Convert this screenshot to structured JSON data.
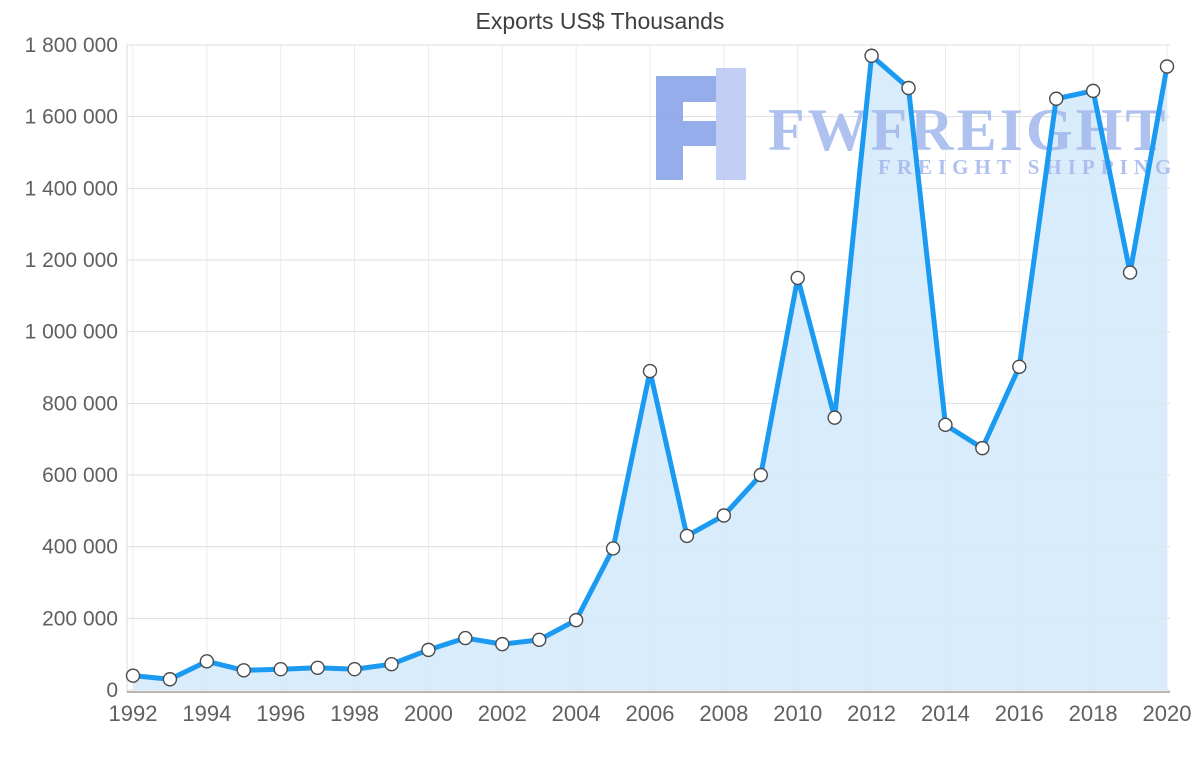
{
  "chart_data": {
    "type": "area",
    "title": "Exports US$ Thousands",
    "xlabel": "",
    "ylabel": "",
    "x": [
      1992,
      1993,
      1994,
      1995,
      1996,
      1997,
      1998,
      1999,
      2000,
      2001,
      2002,
      2003,
      2004,
      2005,
      2006,
      2007,
      2008,
      2009,
      2010,
      2011,
      2012,
      2013,
      2014,
      2015,
      2016,
      2017,
      2018,
      2019,
      2020
    ],
    "values": [
      40000,
      30000,
      80000,
      55000,
      58000,
      62000,
      58000,
      72000,
      112000,
      145000,
      128000,
      140000,
      195000,
      395000,
      890000,
      430000,
      487000,
      600000,
      1150000,
      760000,
      1770000,
      1680000,
      740000,
      675000,
      902000,
      1650000,
      1672000,
      1165000,
      1740000
    ],
    "ylim": [
      0,
      1800000
    ],
    "ytick_step": 200000,
    "xtick_step": 2,
    "grid": true,
    "legend": "none",
    "line_color": "#1b9af2",
    "fill_color": "#d2e9fa",
    "marker_fill": "#ffffff",
    "marker_stroke": "#4a4a4a",
    "grid_color": "#dedede",
    "vgrid_color": "#ececec",
    "axis_color": "#9e9e9e",
    "tick_label_color": "#606060"
  },
  "watermark": {
    "brand": "FWFREIGHT",
    "tagline": "FREIGHT SHIPPING",
    "color": "#a7bbee",
    "logo_color_dark": "#8aa5e8",
    "logo_color_light": "#bcc9f2"
  }
}
